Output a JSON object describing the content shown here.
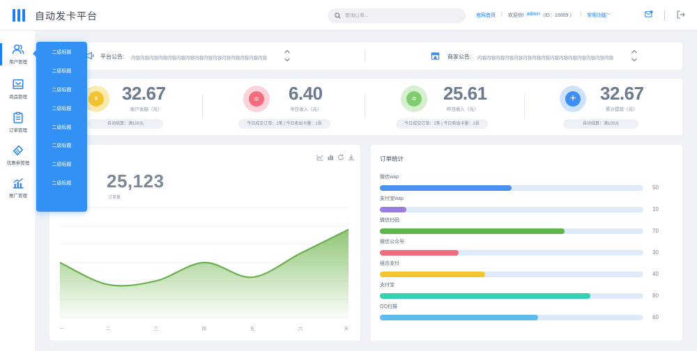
{
  "app": {
    "title": "自动发卡平台"
  },
  "search": {
    "placeholder": "查询订单..."
  },
  "top_links": {
    "home": "官网首页",
    "welcome": "欢迎你!",
    "user": "admin",
    "uid": "（ID：10009 ）",
    "common": "常用功能",
    "separator": "|"
  },
  "sidebar": {
    "items": [
      {
        "label": "用户管理",
        "icon": "users-icon",
        "active": true
      },
      {
        "label": "商品管理",
        "icon": "inbox-icon"
      },
      {
        "label": "订单管理",
        "icon": "clipboard-icon"
      },
      {
        "label": "优惠券管理",
        "icon": "ticket-icon"
      },
      {
        "label": "推广管理",
        "icon": "chart-icon"
      }
    ]
  },
  "flyout": {
    "items": [
      "二级标题",
      "二级标题",
      "二级标题",
      "二级标题",
      "二级标题",
      "二级标题",
      "二级标题",
      "二级标题"
    ]
  },
  "notices": {
    "platform": {
      "label": "平台公告:",
      "text": "内容内容内容内容内容内容内容内容内容内容内容内容内容内容内容"
    },
    "merchant": {
      "label": "商家公告:",
      "text": "内容内容内容内容内容内容内容内容内容内容内容内容内容内容内容"
    }
  },
  "stats": [
    {
      "value": "32.67",
      "label": "账户余额（元）",
      "pill": "自动结算：满100元",
      "color": "#f4c430",
      "ring": "#fbeab0",
      "icon": "yen-coin-icon",
      "glyph": "¥"
    },
    {
      "value": "6.40",
      "label": "今日收入（元）",
      "pill": "今日成交订单：1笔 | 今日卖出卡量：1张",
      "color": "#f46a7e",
      "ring": "#fcd3d9",
      "icon": "wallet-icon",
      "glyph": "◎"
    },
    {
      "value": "25.61",
      "label": "昨日收入（元）",
      "pill": "今日成交订单：1笔 | 今日卖出卡量：1张",
      "color": "#7fcd6f",
      "ring": "#d6efd1",
      "icon": "coin-icon",
      "glyph": "⊜"
    },
    {
      "value": "32.67",
      "label": "累计提现（元）",
      "pill": "自动结算：满100元",
      "color": "#3d8ff5",
      "ring": "#cfe2fc",
      "icon": "plus-icon",
      "glyph": "+"
    }
  ],
  "chart_card": {
    "title": "",
    "big_number": "25,123",
    "caption": "订单量",
    "tool_icons": [
      "line-chart-icon",
      "bar-chart-icon",
      "refresh-icon",
      "download-icon"
    ]
  },
  "chart_data": {
    "type": "area",
    "categories": [
      "一",
      "二",
      "三",
      "四",
      "五",
      "六",
      "天"
    ],
    "values": [
      30,
      18,
      20,
      30,
      22,
      35,
      48
    ],
    "color": "#6ab04c",
    "grid": true
  },
  "order_stats": {
    "title": "订单统计",
    "items": [
      {
        "label": "微信wap",
        "value": 50,
        "color": "#4a90f0"
      },
      {
        "label": "支付宝wap",
        "value": 10,
        "color": "#9b7fe0"
      },
      {
        "label": "微信扫码",
        "value": 70,
        "color": "#5fb54b"
      },
      {
        "label": "微信公众号",
        "value": 30,
        "color": "#f06b7d"
      },
      {
        "label": "组合支付",
        "value": 40,
        "color": "#f5c531"
      },
      {
        "label": "支付宝",
        "value": 80,
        "color": "#35d0ae"
      },
      {
        "label": "QQ扫描",
        "value": 60,
        "color": "#5bbcef"
      }
    ],
    "max": 100
  }
}
